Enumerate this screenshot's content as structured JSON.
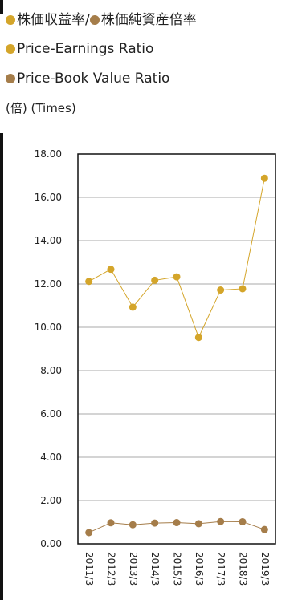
{
  "legend": {
    "title_ja_pe": "株価収益率/",
    "title_ja_pb": "株価純資産倍率",
    "pe_en": "Price-Earnings Ratio",
    "pb_en": "Price-Book Value Ratio"
  },
  "unit_label": "(倍) (Times)",
  "colors": {
    "pe": "#d4a52a",
    "pb": "#a57d4a",
    "axis": "#111111",
    "grid": "#aaaaaa"
  },
  "chart_data": {
    "type": "line",
    "categories": [
      "2011/3",
      "2012/3",
      "2013/3",
      "2014/3",
      "2015/3",
      "2016/3",
      "2017/3",
      "2018/3",
      "2019/3"
    ],
    "series": [
      {
        "name": "Price-Earnings Ratio",
        "values": [
          12.12,
          12.68,
          10.93,
          12.17,
          12.33,
          9.53,
          11.72,
          11.78,
          16.88
        ]
      },
      {
        "name": "Price-Book Value Ratio",
        "values": [
          0.52,
          0.97,
          0.88,
          0.96,
          0.98,
          0.93,
          1.03,
          1.02,
          0.66
        ]
      }
    ],
    "yticks": [
      "0.00",
      "2.00",
      "4.00",
      "6.00",
      "8.00",
      "10.00",
      "12.00",
      "14.00",
      "16.00",
      "18.00"
    ],
    "ylim": [
      0,
      18
    ],
    "ylabel": "(倍) (Times)",
    "grid": true
  }
}
